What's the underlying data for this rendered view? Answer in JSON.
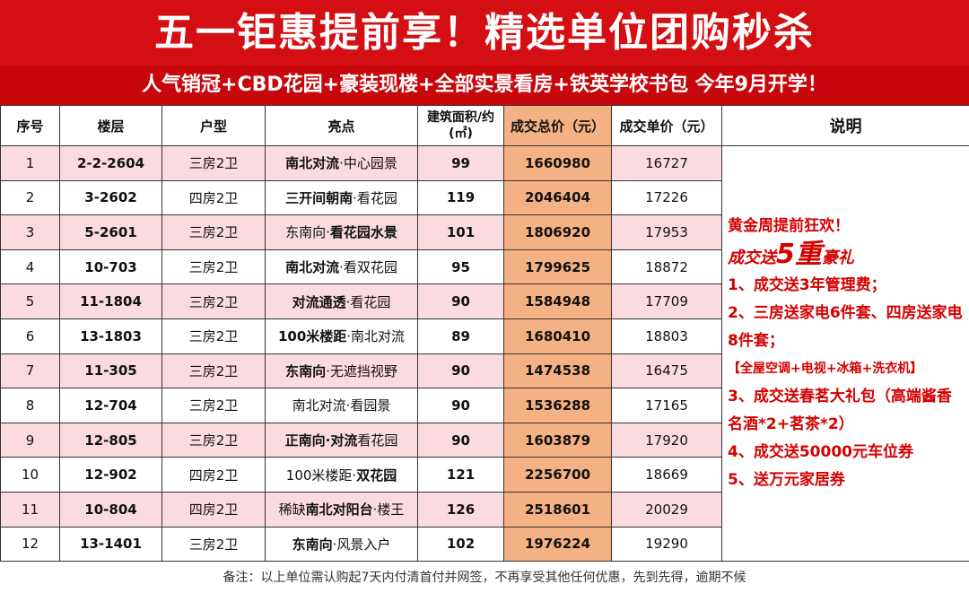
{
  "header": {
    "title": "五一钜惠提前享！精选单位团购秒杀",
    "subtitle": "人气销冠+CBD花园+豪装现楼+全部实景看房+铁英学校书包 今年9月开学！"
  },
  "table": {
    "columns": [
      "序号",
      "楼层",
      "户型",
      "亮点",
      "建筑面积/约",
      "(㎡)",
      "成交总价（元）",
      "成交单价（元）",
      "说明"
    ],
    "rows": [
      {
        "no": "1",
        "floor": "2-2-2604",
        "type": "三房2卫",
        "hl_bold": "南北对流",
        "hl_rest": "·中心园景",
        "area": "99",
        "total": "1660980",
        "unit": "16727"
      },
      {
        "no": "2",
        "floor": "3-2602",
        "type": "四房2卫",
        "hl_bold": "三开间朝南",
        "hl_rest": "·看花园",
        "area": "119",
        "total": "2046404",
        "unit": "17226"
      },
      {
        "no": "3",
        "floor": "5-2601",
        "type": "三房2卫",
        "hl_pre": "东南向·",
        "hl_bold": "看花园水景",
        "area": "101",
        "total": "1806920",
        "unit": "17953"
      },
      {
        "no": "4",
        "floor": "10-703",
        "type": "三房2卫",
        "hl_bold": "南北对流",
        "hl_rest": "·看双花园",
        "area": "95",
        "total": "1799625",
        "unit": "18872"
      },
      {
        "no": "5",
        "floor": "11-1804",
        "type": "三房2卫",
        "hl_bold": "对流通透",
        "hl_rest": "·看花园",
        "area": "90",
        "total": "1584948",
        "unit": "17709"
      },
      {
        "no": "6",
        "floor": "13-1803",
        "type": "三房2卫",
        "hl_bold": "100米楼距",
        "hl_rest": "·南北对流",
        "area": "89",
        "total": "1680410",
        "unit": "18803"
      },
      {
        "no": "7",
        "floor": "11-305",
        "type": "三房2卫",
        "hl_bold": "东南向",
        "hl_rest": "·无遮挡视野",
        "area": "90",
        "total": "1474538",
        "unit": "16475"
      },
      {
        "no": "8",
        "floor": "12-704",
        "type": "三房2卫",
        "hl_pre": "南北对流·看园景",
        "area": "90",
        "total": "1536288",
        "unit": "17165"
      },
      {
        "no": "9",
        "floor": "12-805",
        "type": "三房2卫",
        "hl_bold": "正南向·对流",
        "hl_rest": "看花园",
        "area": "90",
        "total": "1603879",
        "unit": "17920"
      },
      {
        "no": "10",
        "floor": "12-902",
        "type": "四房2卫",
        "hl_pre": "100米楼距·",
        "hl_bold": "双花园",
        "area": "121",
        "total": "2256700",
        "unit": "18669"
      },
      {
        "no": "11",
        "floor": "10-804",
        "type": "四房2卫",
        "hl_pre": "稀缺",
        "hl_bold": "南北对阳台",
        "hl_rest": "·楼王",
        "area": "126",
        "total": "2518601",
        "unit": "20029"
      },
      {
        "no": "12",
        "floor": "13-1401",
        "type": "三房2卫",
        "hl_bold": "东南向",
        "hl_rest": "·风景入户",
        "area": "102",
        "total": "1976224",
        "unit": "19290"
      }
    ]
  },
  "notes": {
    "headline": "黄金周提前狂欢！",
    "gift_pre": "成交送",
    "gift_big": "5重",
    "gift_post": "豪礼",
    "items": [
      "1、成交送3年管理费；",
      "2、三房送家电6件套、四房送家电8件套；",
      "【全屋空调+电视+冰箱+洗衣机】",
      "3、成交送春茗大礼包（高端酱香名酒*2+茗茶*2）",
      "4、成交送50000元车位券",
      "5、送万元家居券"
    ]
  },
  "footer": {
    "text": "备注：以上单位需认购起7天内付清首付并网签，不再享受其他任何优惠，先到先得，逾期不候"
  }
}
